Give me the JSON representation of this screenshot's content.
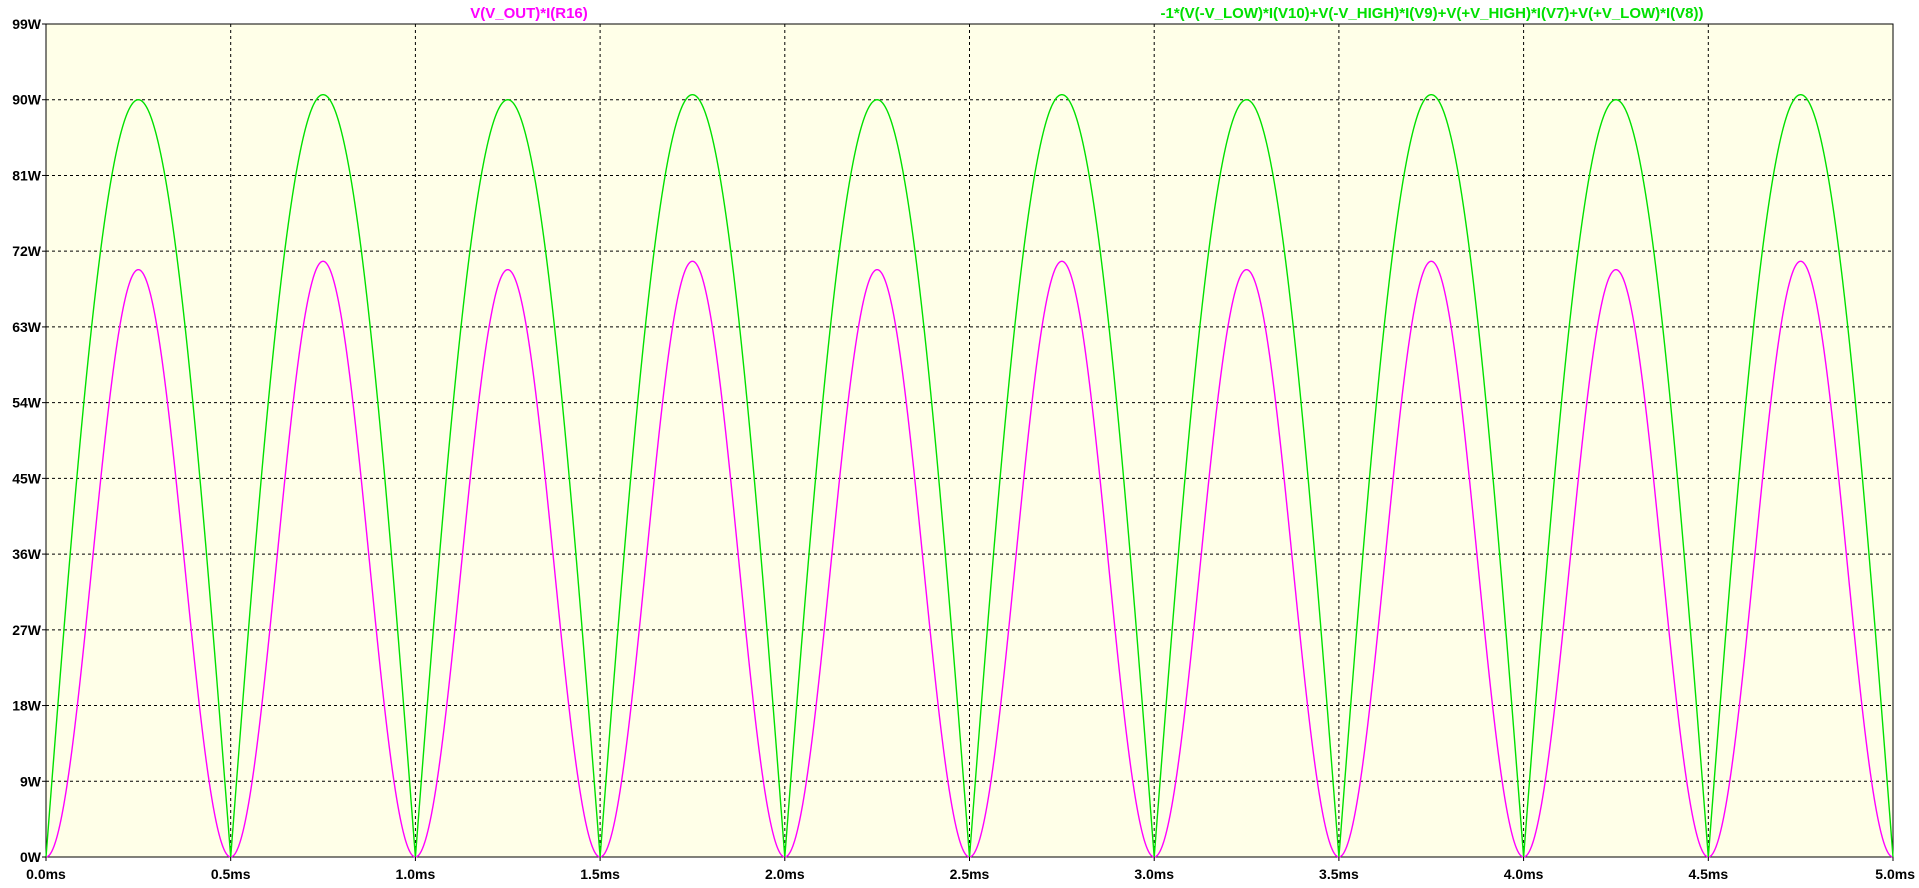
{
  "chart_data": {
    "type": "line",
    "xlabel": "",
    "ylabel": "",
    "xlim": [
      0,
      5
    ],
    "ylim": [
      0,
      99
    ],
    "grid": true,
    "x_ticks": [
      "0.0ms",
      "0.5ms",
      "1.0ms",
      "1.5ms",
      "2.0ms",
      "2.5ms",
      "3.0ms",
      "3.5ms",
      "4.0ms",
      "4.5ms",
      "5.0ms"
    ],
    "y_ticks": [
      "0W",
      "9W",
      "18W",
      "27W",
      "36W",
      "45W",
      "54W",
      "63W",
      "72W",
      "81W",
      "90W",
      "99W"
    ],
    "background": "#ffffe8",
    "series": [
      {
        "name": "V(V_OUT)*I(R16)",
        "color": "#ff00ff",
        "waveform": "sin^2",
        "period_ms": 0.5,
        "peak_W_odd_half": 69.8,
        "peak_W_even_half": 70.8,
        "min_W": 0
      },
      {
        "name": "-1*(V(-V_LOW)*I(V10)+V(-V_HIGH)*I(V9)+V(+V_HIGH)*I(V7)+V(+V_LOW)*I(V8))",
        "color": "#00e000",
        "waveform": "|sin|",
        "period_ms": 0.5,
        "peak_W_odd_half": 90.0,
        "peak_W_even_half": 90.6,
        "min_W": 0
      }
    ]
  }
}
